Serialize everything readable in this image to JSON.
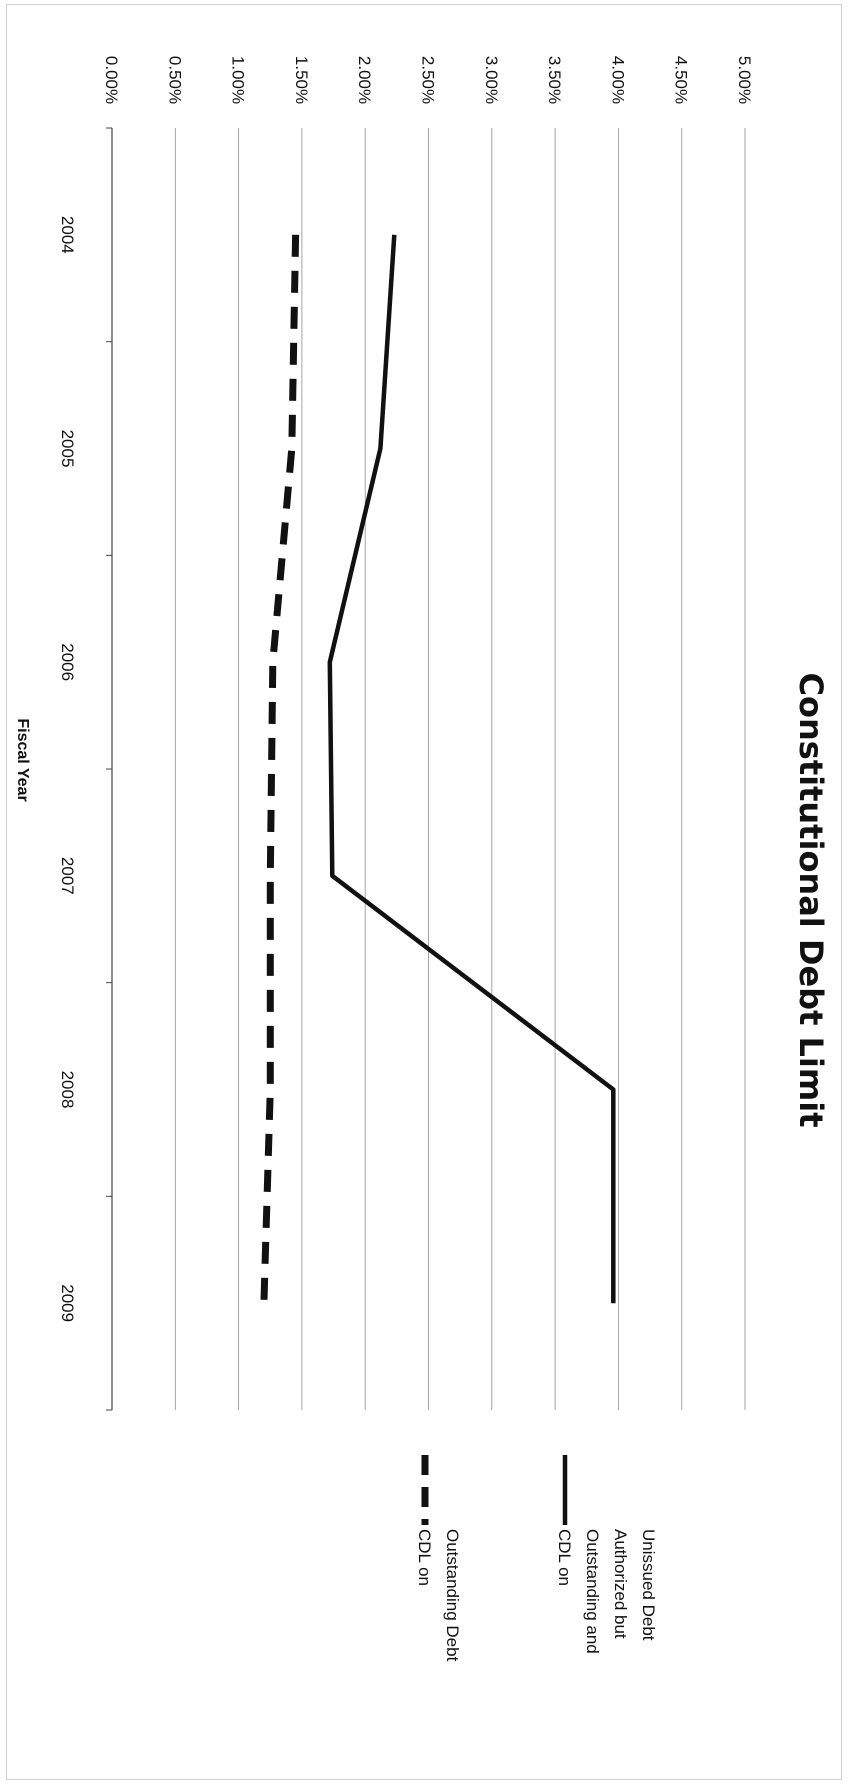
{
  "chart_data": {
    "type": "line",
    "title": "Constitutional Debt Limit",
    "xlabel": "Fiscal Year",
    "ylabel": "",
    "categories": [
      "2004",
      "2005",
      "2006",
      "2007",
      "2008",
      "2009"
    ],
    "ylim": [
      0,
      5
    ],
    "y_tick_labels": [
      "0.00%",
      "0.50%",
      "1.00%",
      "1.50%",
      "2.00%",
      "2.50%",
      "3.00%",
      "3.50%",
      "4.00%",
      "4.50%",
      "5.00%"
    ],
    "y_ticks": [
      0,
      0.5,
      1,
      1.5,
      2,
      2.5,
      3,
      3.5,
      4,
      4.5,
      5
    ],
    "grid": true,
    "legend_position": "right",
    "orientation": "rotated 90 degrees clockwise",
    "series": [
      {
        "name_lines": [
          "CDL on",
          "Outstanding and",
          "Authorized but",
          "Unissued Debt"
        ],
        "name": "CDL on Outstanding and Authorized but Unissued Debt",
        "style": "solid",
        "color": "#111111",
        "values": [
          2.23,
          2.12,
          1.72,
          1.74,
          3.96,
          3.96
        ]
      },
      {
        "name_lines": [
          "CDL on",
          "Outstanding Debt"
        ],
        "name": "CDL on Outstanding Debt",
        "style": "dashed",
        "color": "#111111",
        "values": [
          1.45,
          1.42,
          1.27,
          1.25,
          1.25,
          1.2
        ]
      }
    ]
  }
}
